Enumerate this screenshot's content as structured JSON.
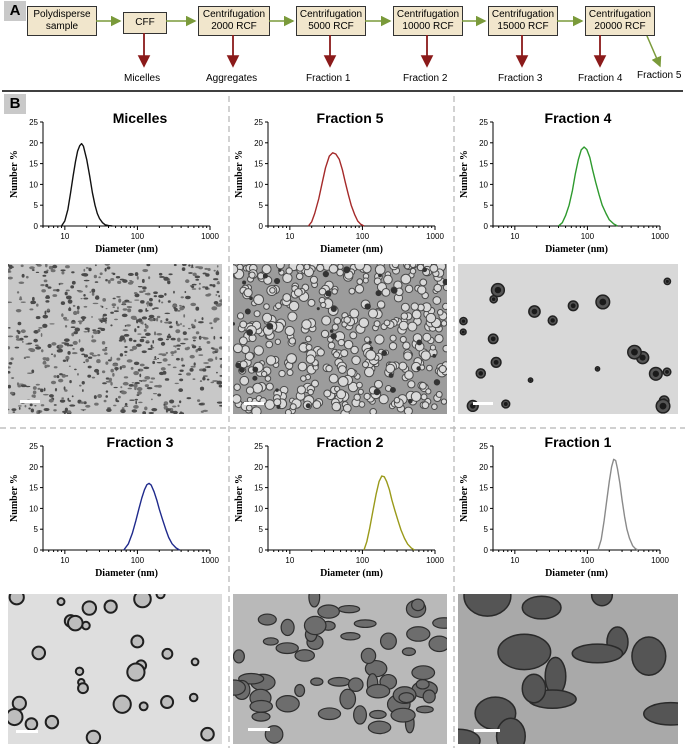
{
  "panel_a": {
    "tag": "A",
    "boxes": [
      "Polydisperse sample",
      "CFF",
      "Centrifugation 2000 RCF",
      "Centrifugation 5000 RCF",
      "Centrifugation 10000 RCF",
      "Centrifugation 15000 RCF",
      "Centrifugation 20000 RCF"
    ],
    "outputs": [
      "Micelles",
      "Aggregates",
      "Fraction 1",
      "Fraction 2",
      "Fraction 3",
      "Fraction 4",
      "Fraction 5"
    ]
  },
  "panel_b": {
    "tag": "B",
    "ylabel": "Number %",
    "xlabel": "Diameter (nm)"
  },
  "chart_data": [
    {
      "type": "line",
      "title": "Micelles",
      "color": "#111111",
      "xscale": "log",
      "xlim": [
        5,
        1000
      ],
      "ylim": [
        0,
        25
      ],
      "xticks": [
        "10",
        "100",
        "1000"
      ],
      "yticks": [
        "0",
        "5",
        "10",
        "15",
        "20",
        "25"
      ],
      "xlabel": "Diameter (nm)",
      "ylabel": "Number %",
      "x": [
        9,
        10,
        11,
        12,
        13,
        14,
        15,
        16,
        17,
        18,
        20,
        22,
        24,
        26,
        28,
        30,
        33,
        36,
        40,
        45
      ],
      "y": [
        0,
        1.2,
        4,
        8,
        12,
        15.5,
        18,
        19.3,
        19.8,
        19.2,
        16,
        12,
        8,
        5,
        3,
        1.8,
        0.8,
        0.3,
        0.1,
        0
      ]
    },
    {
      "type": "line",
      "title": "Fraction 5",
      "color": "#a52a2a",
      "xscale": "log",
      "xlim": [
        5,
        1000
      ],
      "ylim": [
        0,
        25
      ],
      "xticks": [
        "10",
        "100",
        "1000"
      ],
      "yticks": [
        "0",
        "5",
        "10",
        "15",
        "20",
        "25"
      ],
      "xlabel": "Diameter (nm)",
      "ylabel": "Number %",
      "x": [
        18,
        20,
        22,
        25,
        28,
        31,
        35,
        39,
        43,
        48,
        53,
        58,
        64,
        70,
        78,
        86,
        95,
        105
      ],
      "y": [
        0,
        1,
        3,
        6.5,
        10.5,
        14,
        16.8,
        17.6,
        17.3,
        16,
        13.5,
        10.5,
        7.5,
        5,
        2.8,
        1.2,
        0.4,
        0
      ]
    },
    {
      "type": "line",
      "title": "Fraction 4",
      "color": "#2e9a2e",
      "xscale": "log",
      "xlim": [
        5,
        1000
      ],
      "ylim": [
        0,
        25
      ],
      "xticks": [
        "10",
        "100",
        "1000"
      ],
      "yticks": [
        "0",
        "5",
        "10",
        "15",
        "20",
        "25"
      ],
      "xlabel": "Diameter (nm)",
      "ylabel": "Number %",
      "x": [
        40,
        45,
        50,
        56,
        62,
        68,
        75,
        82,
        90,
        98,
        108,
        118,
        130,
        145,
        160,
        180,
        200,
        230,
        260
      ],
      "y": [
        0,
        0.8,
        2.5,
        5,
        8.5,
        12.5,
        16,
        18.3,
        19,
        18.4,
        16.5,
        13.5,
        10.5,
        7.5,
        5,
        3,
        1.5,
        0.5,
        0
      ]
    },
    {
      "type": "line",
      "title": "Fraction 3",
      "color": "#1f2a8c",
      "xscale": "log",
      "xlim": [
        5,
        1000
      ],
      "ylim": [
        0,
        25
      ],
      "xticks": [
        "10",
        "100",
        "1000"
      ],
      "yticks": [
        "0",
        "5",
        "10",
        "15",
        "20",
        "25"
      ],
      "xlabel": "Diameter (nm)",
      "ylabel": "Number %",
      "x": [
        65,
        75,
        85,
        95,
        105,
        115,
        125,
        135,
        145,
        155,
        170,
        185,
        200,
        220,
        245,
        270,
        300,
        340,
        380
      ],
      "y": [
        0,
        1.5,
        4,
        7,
        10,
        12.5,
        14.5,
        15.7,
        16,
        15.6,
        14,
        12,
        9.8,
        7.5,
        5,
        3,
        1.5,
        0.5,
        0
      ]
    },
    {
      "type": "line",
      "title": "Fraction 2",
      "color": "#9a9a1a",
      "xscale": "log",
      "xlim": [
        5,
        1000
      ],
      "ylim": [
        0,
        25
      ],
      "xticks": [
        "10",
        "100",
        "1000"
      ],
      "yticks": [
        "0",
        "5",
        "10",
        "15",
        "20",
        "25"
      ],
      "xlabel": "Diameter (nm)",
      "ylabel": "Number %",
      "x": [
        105,
        115,
        125,
        140,
        155,
        170,
        185,
        200,
        215,
        235,
        255,
        280,
        310,
        340,
        380,
        420,
        470,
        520
      ],
      "y": [
        0,
        2,
        5,
        9.5,
        13.5,
        16.5,
        17.8,
        17.6,
        16.5,
        14.5,
        12,
        9.5,
        7,
        4.8,
        2.8,
        1.4,
        0.5,
        0
      ]
    },
    {
      "type": "line",
      "title": "Fraction 1",
      "color": "#8a8a8a",
      "xscale": "log",
      "xlim": [
        5,
        1000
      ],
      "ylim": [
        0,
        25
      ],
      "xticks": [
        "10",
        "100",
        "1000"
      ],
      "yticks": [
        "0",
        "5",
        "10",
        "15",
        "20",
        "25"
      ],
      "xlabel": "Diameter (nm)",
      "ylabel": "Number %",
      "x": [
        140,
        155,
        170,
        185,
        200,
        215,
        230,
        245,
        260,
        280,
        300,
        325,
        350,
        380,
        420,
        460,
        500
      ],
      "y": [
        0,
        2.5,
        7,
        12,
        16.5,
        20,
        21.8,
        21.5,
        19.5,
        16,
        12,
        8,
        5,
        2.8,
        1,
        0.3,
        0
      ]
    }
  ],
  "tem_images": [
    "micelles-tem",
    "fraction-5-tem",
    "fraction-4-tem",
    "fraction-3-tem",
    "fraction-2-tem",
    "fraction-1-tem"
  ]
}
